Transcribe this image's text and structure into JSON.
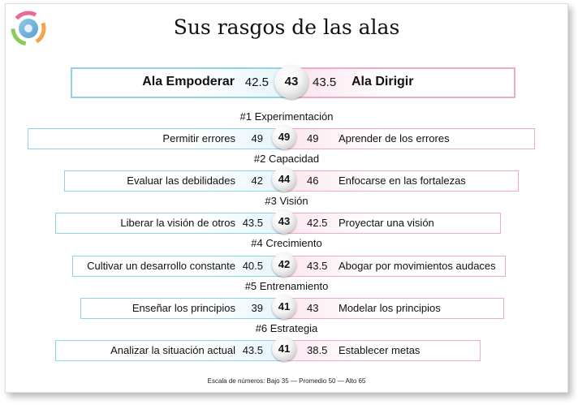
{
  "title": "Sus rasgos de las alas",
  "logo_icon": "logo-icon",
  "main": {
    "left_label": "Ala Empoderar",
    "left_value": "42.5",
    "center_value": "43",
    "right_value": "43.5",
    "right_label": "Ala Dirigir"
  },
  "traits": [
    {
      "title": "#1 Experimentación",
      "left_label": "Permitir errores",
      "left_value": "49",
      "center_value": "49",
      "right_value": "49",
      "right_label": "Aprender de los errores"
    },
    {
      "title": "#2 Capacidad",
      "left_label": "Evaluar las debilidades",
      "left_value": "42",
      "center_value": "44",
      "right_value": "46",
      "right_label": "Enfocarse en las fortalezas"
    },
    {
      "title": "#3 Visión",
      "left_label": "Liberar la visión de otros",
      "left_value": "43.5",
      "center_value": "43",
      "right_value": "42.5",
      "right_label": "Proyectar una visión"
    },
    {
      "title": "#4 Crecimiento",
      "left_label": "Cultivar un desarrollo constante",
      "left_value": "40.5",
      "center_value": "42",
      "right_value": "43.5",
      "right_label": "Abogar por movimientos audaces"
    },
    {
      "title": "#5 Entrenamiento",
      "left_label": "Enseñar los principios",
      "left_value": "39",
      "center_value": "41",
      "right_value": "43",
      "right_label": "Modelar los principios"
    },
    {
      "title": "#6 Estrategia",
      "left_label": "Analizar la situación actual",
      "left_value": "43.5",
      "center_value": "41",
      "right_value": "38.5",
      "right_label": "Establecer metas"
    }
  ],
  "footer": "Escala de números: Bajo 35 — Promedio 50 — Alto 65",
  "colors": {
    "empower": "#8fd3ea",
    "direct": "#f1a9c9"
  }
}
